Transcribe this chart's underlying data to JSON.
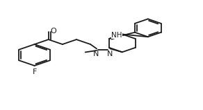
{
  "background_color": "#ffffff",
  "line_color": "#1a1a1a",
  "line_width": 1.3,
  "font_size": 7.5,
  "fig_width": 2.92,
  "fig_height": 1.59,
  "dpi": 100,
  "xlim": [
    -0.05,
    1.05
  ],
  "ylim": [
    0.0,
    1.0
  ]
}
